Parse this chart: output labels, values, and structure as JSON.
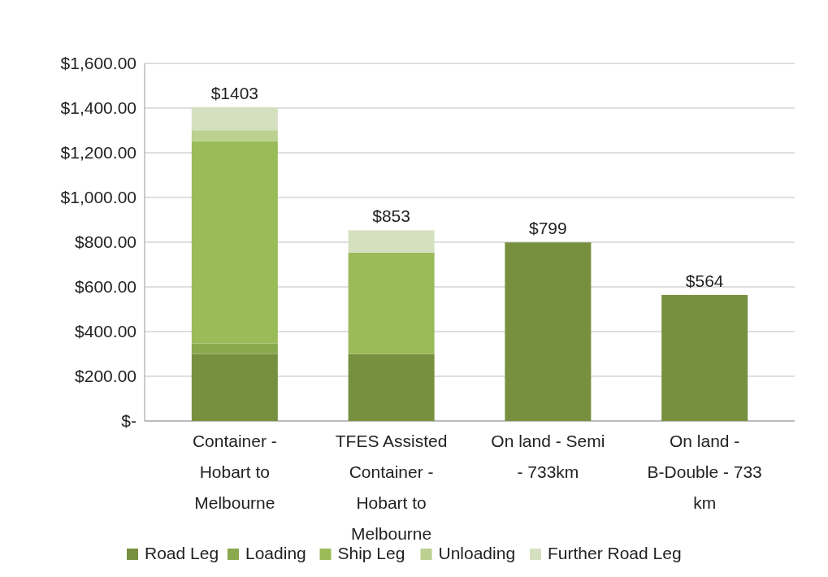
{
  "chart_data": {
    "type": "bar",
    "stacked": true,
    "categories": [
      "Container - Hobart to Melbourne",
      "TFES Assisted Container - Hobart to Melbourne",
      "On land - Semi - 733km",
      "On land - B-Double - 733 km"
    ],
    "series": [
      {
        "name": "Road Leg",
        "color": "#77903f",
        "values": [
          300,
          300,
          799,
          564
        ]
      },
      {
        "name": "Loading",
        "color": "#8aa84e",
        "values": [
          47,
          0,
          0,
          0
        ]
      },
      {
        "name": "Ship Leg",
        "color": "#9bbb59",
        "values": [
          905,
          453,
          0,
          0
        ]
      },
      {
        "name": "Unloading",
        "color": "#bcd08f",
        "values": [
          49,
          0,
          0,
          0
        ]
      },
      {
        "name": "Further Road Leg",
        "color": "#d5e0c1",
        "values": [
          102,
          100,
          0,
          0
        ]
      }
    ],
    "totals": [
      "$1403",
      "$853",
      "$799",
      "$564"
    ],
    "ylim": [
      0,
      1600
    ],
    "yticks": [
      {
        "value": 0,
        "label": "$-"
      },
      {
        "value": 200,
        "label": "$200.00"
      },
      {
        "value": 400,
        "label": "$400.00"
      },
      {
        "value": 600,
        "label": "$600.00"
      },
      {
        "value": 800,
        "label": "$800.00"
      },
      {
        "value": 1000,
        "label": "$1,000.00"
      },
      {
        "value": 1200,
        "label": "$1,200.00"
      },
      {
        "value": 1400,
        "label": "$1,400.00"
      },
      {
        "value": 1600,
        "label": "$1,600.00"
      }
    ],
    "grid": "y",
    "legend": "bottom"
  }
}
